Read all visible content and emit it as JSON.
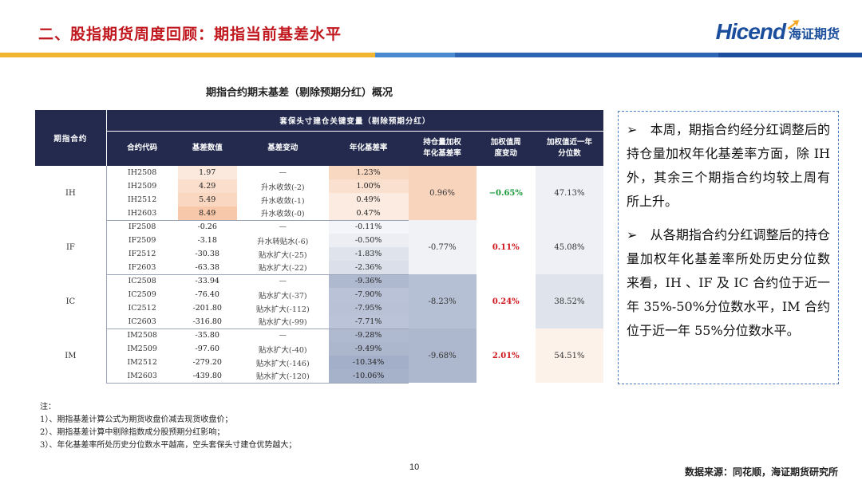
{
  "header": {
    "title": "二、股指期货周度回顾：期指当前基差水平",
    "logo_en": "Hicend",
    "logo_mark": "®",
    "logo_cn": "海证期货"
  },
  "band_colors": [
    "#f2b531",
    "#f2b531",
    "#4a8ad0",
    "#2d64b3",
    "#1d4f9e"
  ],
  "caption": "期指合约期末基差（剔除预期分红）概况",
  "table": {
    "header_top": {
      "group_col": "期指合约",
      "span_label": "套保头寸建仓关键变量（剔除预期分红）"
    },
    "columns": [
      "合约代码",
      "基差数值",
      "基差变动",
      "年化基差率",
      "持仓量加权\n年化基差率",
      "加权值周\n度变动",
      "加权值近一年\n分位数"
    ],
    "groups": [
      {
        "name": "IH",
        "weighted_yr": "0.96%",
        "weekly_change": "−0.65%",
        "weekly_change_color": "#1a9a3a",
        "percentile": "47.13%",
        "weighted_bg": "#f9d4bd",
        "percentile_bg": "#eef0f5",
        "rows": [
          {
            "code": "IH2508",
            "basis": "1.97",
            "change": "—",
            "annual": "1.23%",
            "basis_bg": "#fce9dd",
            "annual_bg": "#f9d8c2"
          },
          {
            "code": "IH2509",
            "basis": "4.29",
            "change": "升水收敛(-2)",
            "annual": "1.00%",
            "basis_bg": "#fbdfcc",
            "annual_bg": "#fae0cf"
          },
          {
            "code": "IH2512",
            "basis": "5.49",
            "change": "升水收敛(-1)",
            "annual": "0.49%",
            "basis_bg": "#fad7c0",
            "annual_bg": "#fcebe0"
          },
          {
            "code": "IH2603",
            "basis": "8.49",
            "change": "升水收敛(-0)",
            "annual": "0.47%",
            "basis_bg": "#f7c8a9",
            "annual_bg": "#fcebe0"
          }
        ]
      },
      {
        "name": "IF",
        "weighted_yr": "-0.77%",
        "weekly_change": "0.11%",
        "weekly_change_color": "#d0161c",
        "percentile": "45.08%",
        "weighted_bg": "#f1f2f6",
        "percentile_bg": "#eef0f5",
        "rows": [
          {
            "code": "IF2508",
            "basis": "-0.26",
            "change": "—",
            "annual": "-0.11%",
            "basis_bg": "#ffffff",
            "annual_bg": "#f4f5f9"
          },
          {
            "code": "IF2509",
            "basis": "-3.18",
            "change": "升水转贴水(-6)",
            "annual": "-0.50%",
            "basis_bg": "#ffffff",
            "annual_bg": "#eceef4"
          },
          {
            "code": "IF2512",
            "basis": "-30.38",
            "change": "贴水扩大(-25)",
            "annual": "-1.83%",
            "basis_bg": "#ffffff",
            "annual_bg": "#dfe3ec"
          },
          {
            "code": "IF2603",
            "basis": "-63.38",
            "change": "贴水扩大(-22)",
            "annual": "-2.36%",
            "basis_bg": "#ffffff",
            "annual_bg": "#dbdfea"
          }
        ]
      },
      {
        "name": "IC",
        "weighted_yr": "-8.23%",
        "weekly_change": "0.24%",
        "weekly_change_color": "#d0161c",
        "percentile": "38.52%",
        "weighted_bg": "#b6c0d4",
        "percentile_bg": "#dfe3ec",
        "rows": [
          {
            "code": "IC2508",
            "basis": "-33.94",
            "change": "—",
            "annual": "-9.36%",
            "basis_bg": "#ffffff",
            "annual_bg": "#aeb8ce"
          },
          {
            "code": "IC2509",
            "basis": "-76.40",
            "change": "贴水扩大(-37)",
            "annual": "-7.90%",
            "basis_bg": "#ffffff",
            "annual_bg": "#b9c2d6"
          },
          {
            "code": "IC2512",
            "basis": "-201.80",
            "change": "贴水扩大(-112)",
            "annual": "-7.95%",
            "basis_bg": "#ffffff",
            "annual_bg": "#b8c1d5"
          },
          {
            "code": "IC2603",
            "basis": "-316.80",
            "change": "贴水扩大(-99)",
            "annual": "-7.71%",
            "basis_bg": "#ffffff",
            "annual_bg": "#bac3d7"
          }
        ]
      },
      {
        "name": "IM",
        "weighted_yr": "-9.68%",
        "weekly_change": "2.01%",
        "weekly_change_color": "#d0161c",
        "percentile": "54.51%",
        "weighted_bg": "#adb8ce",
        "percentile_bg": "#fdf2ea",
        "rows": [
          {
            "code": "IM2508",
            "basis": "-35.80",
            "change": "—",
            "annual": "-9.28%",
            "basis_bg": "#ffffff",
            "annual_bg": "#afb9cf"
          },
          {
            "code": "IM2509",
            "basis": "-97.60",
            "change": "贴水扩大(-40)",
            "annual": "-9.49%",
            "basis_bg": "#ffffff",
            "annual_bg": "#acb7cd"
          },
          {
            "code": "IM2512",
            "basis": "-279.20",
            "change": "贴水扩大(-146)",
            "annual": "-10.34%",
            "basis_bg": "#ffffff",
            "annual_bg": "#a3afc8"
          },
          {
            "code": "IM2603",
            "basis": "-439.80",
            "change": "贴水扩大(-120)",
            "annual": "-10.06%",
            "basis_bg": "#ffffff",
            "annual_bg": "#a6b1ca"
          }
        ]
      }
    ]
  },
  "commentary": [
    "➢　本周，期指合约经分红调整后的持仓量加权年化基差率方面，除 IH 外，其余三个期指合约均较上周有所上升。",
    "➢　从各期指合约分红调整后的持仓量加权年化基差率所处历史分位数来看，IH 、IF 及 IC 合约位于近一年 35%-50%分位数水平，IM 合约位于近一年 55%分位数水平。"
  ],
  "notes": [
    "注：",
    "1）、期指基差计算公式为期货收盘价减去现货收盘价；",
    "2）、期指基差计算中剔除指数成分股预期分红影响；",
    "3）、年化基差率所处历史分位数水平越高，空头套保头寸建仓优势越大；"
  ],
  "page_number": "10",
  "source": "数据来源：同花顺，海证期货研究所"
}
